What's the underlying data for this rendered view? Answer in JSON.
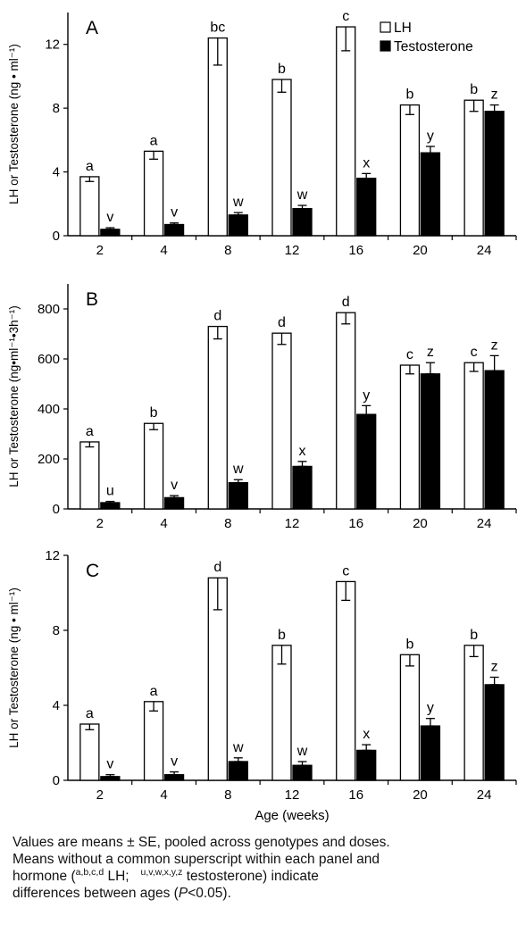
{
  "x_axis_label": "Age (weeks)",
  "legend": [
    {
      "label": "LH",
      "fill": "#ffffff"
    },
    {
      "label": "Testosterone",
      "fill": "#000000"
    }
  ],
  "chart_data": [
    {
      "type": "bar",
      "panel_label": "A",
      "ylabel": "LH or Testosterone (ng • ml⁻¹)",
      "ylim": [
        0,
        14
      ],
      "yticks": [
        0,
        4,
        8,
        12
      ],
      "categories": [
        "2",
        "4",
        "8",
        "12",
        "16",
        "20",
        "24"
      ],
      "series": [
        {
          "name": "LH",
          "fill": "#ffffff",
          "values": [
            3.7,
            5.3,
            12.4,
            9.8,
            13.1,
            8.2,
            8.5
          ],
          "errors": [
            0.3,
            0.5,
            1.7,
            0.8,
            1.5,
            0.6,
            0.7
          ],
          "letters": [
            "a",
            "a",
            "bc",
            "b",
            "c",
            "b",
            "b"
          ]
        },
        {
          "name": "Testosterone",
          "fill": "#000000",
          "values": [
            0.4,
            0.7,
            1.3,
            1.7,
            3.6,
            5.2,
            7.8
          ],
          "errors": [
            0.1,
            0.1,
            0.15,
            0.2,
            0.3,
            0.4,
            0.4
          ],
          "letters": [
            "v",
            "v",
            "w",
            "w",
            "x",
            "y",
            "z"
          ]
        }
      ]
    },
    {
      "type": "bar",
      "panel_label": "B",
      "ylabel": "LH or Testosterone (ng•ml⁻¹•3h⁻¹)",
      "ylim": [
        0,
        900
      ],
      "yticks": [
        0,
        200,
        400,
        600,
        800
      ],
      "categories": [
        "2",
        "4",
        "8",
        "12",
        "16",
        "20",
        "24"
      ],
      "series": [
        {
          "name": "LH",
          "fill": "#ffffff",
          "values": [
            268,
            342,
            730,
            703,
            785,
            575,
            585
          ],
          "errors": [
            20,
            25,
            50,
            45,
            45,
            35,
            35
          ],
          "letters": [
            "a",
            "b",
            "d",
            "d",
            "d",
            "c",
            "c"
          ]
        },
        {
          "name": "Testosterone",
          "fill": "#000000",
          "values": [
            25,
            45,
            105,
            170,
            378,
            540,
            553
          ],
          "errors": [
            5,
            8,
            12,
            20,
            35,
            45,
            60
          ],
          "letters": [
            "u",
            "v",
            "w",
            "x",
            "y",
            "z",
            "z"
          ]
        }
      ]
    },
    {
      "type": "bar",
      "panel_label": "C",
      "ylabel": "LH or Testosterone (ng • ml⁻¹)",
      "ylim": [
        0,
        12
      ],
      "yticks": [
        0,
        4,
        8,
        12
      ],
      "categories": [
        "2",
        "4",
        "8",
        "12",
        "16",
        "20",
        "24"
      ],
      "series": [
        {
          "name": "LH",
          "fill": "#ffffff",
          "values": [
            3.0,
            4.2,
            10.8,
            7.2,
            10.6,
            6.7,
            7.2
          ],
          "errors": [
            0.3,
            0.5,
            1.7,
            1.0,
            1.0,
            0.6,
            0.6
          ],
          "letters": [
            "a",
            "a",
            "d",
            "b",
            "c",
            "b",
            "b"
          ]
        },
        {
          "name": "Testosterone",
          "fill": "#000000",
          "values": [
            0.2,
            0.3,
            1.0,
            0.8,
            1.6,
            2.9,
            5.1
          ],
          "errors": [
            0.1,
            0.15,
            0.2,
            0.2,
            0.3,
            0.4,
            0.4
          ],
          "letters": [
            "v",
            "v",
            "w",
            "w",
            "x",
            "y",
            "z"
          ]
        }
      ]
    }
  ],
  "caption": {
    "line1": "Values are means ± SE, pooled across genotypes and doses.",
    "line2": "Means without a common superscript within each panel and",
    "line3_pre": "hormone (",
    "sup_lh": "a,b,c,d",
    "lh": " LH;",
    "sup_t": "u,v,w,x,y,z",
    "t": " testosterone) indicate",
    "line4_pre": "differences between ages (",
    "p_symbol": "P",
    "line4_post": "<0.05)."
  }
}
